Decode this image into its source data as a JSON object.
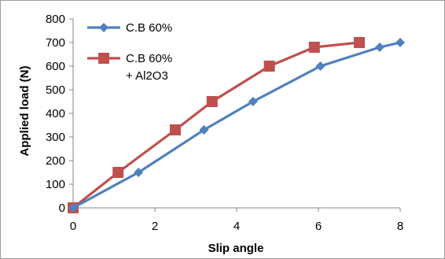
{
  "chart_data": {
    "type": "line",
    "title": "",
    "xlabel": "Slip angle",
    "ylabel": "Applied load (N)",
    "xlim": [
      0,
      8
    ],
    "ylim": [
      0,
      800
    ],
    "xticks": [
      0,
      2,
      4,
      6,
      8
    ],
    "yticks": [
      0,
      100,
      200,
      300,
      400,
      500,
      600,
      700,
      800
    ],
    "grid": false,
    "legend_position": "top-left",
    "series": [
      {
        "name": "C.B 60%",
        "color": "#4F81BD",
        "marker": "diamond",
        "x": [
          0,
          1.6,
          3.2,
          4.4,
          6.05,
          7.5,
          8.0
        ],
        "y": [
          0,
          150,
          330,
          450,
          600,
          680,
          700
        ]
      },
      {
        "name": "C.B 60% + Al2O3",
        "name_lines": [
          "C.B 60%",
          "+ Al2O3"
        ],
        "color": "#C0504D",
        "marker": "square",
        "x": [
          0,
          1.1,
          2.5,
          3.4,
          4.8,
          5.9,
          7.0
        ],
        "y": [
          0,
          150,
          330,
          450,
          600,
          680,
          700
        ]
      }
    ]
  }
}
